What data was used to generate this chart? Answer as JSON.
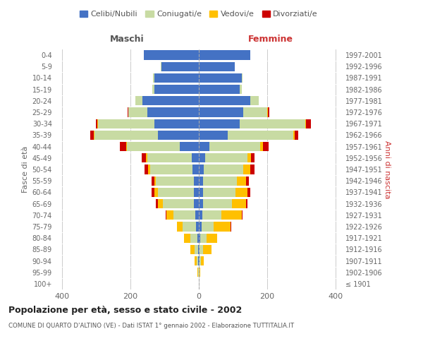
{
  "age_groups": [
    "100+",
    "95-99",
    "90-94",
    "85-89",
    "80-84",
    "75-79",
    "70-74",
    "65-69",
    "60-64",
    "55-59",
    "50-54",
    "45-49",
    "40-44",
    "35-39",
    "30-34",
    "25-29",
    "20-24",
    "15-19",
    "10-14",
    "5-9",
    "0-4"
  ],
  "birth_years": [
    "≤ 1901",
    "1902-1906",
    "1907-1911",
    "1912-1916",
    "1917-1921",
    "1922-1926",
    "1927-1931",
    "1932-1936",
    "1937-1941",
    "1942-1946",
    "1947-1951",
    "1952-1956",
    "1957-1961",
    "1962-1966",
    "1967-1971",
    "1972-1976",
    "1977-1981",
    "1982-1986",
    "1987-1991",
    "1992-1996",
    "1997-2001"
  ],
  "maschi": {
    "celibi": [
      0,
      0,
      2,
      3,
      5,
      8,
      10,
      15,
      15,
      15,
      18,
      20,
      55,
      120,
      130,
      150,
      165,
      130,
      130,
      110,
      160
    ],
    "coniugati": [
      0,
      2,
      5,
      10,
      20,
      40,
      65,
      90,
      105,
      110,
      125,
      130,
      155,
      185,
      165,
      55,
      20,
      5,
      3,
      1,
      1
    ],
    "vedovi": [
      0,
      2,
      5,
      12,
      18,
      15,
      20,
      15,
      10,
      5,
      5,
      5,
      3,
      2,
      1,
      1,
      0,
      0,
      0,
      0,
      0
    ],
    "divorziati": [
      0,
      0,
      0,
      0,
      0,
      0,
      2,
      5,
      8,
      8,
      10,
      12,
      18,
      10,
      5,
      2,
      1,
      0,
      0,
      0,
      0
    ]
  },
  "femmine": {
    "nubili": [
      0,
      0,
      2,
      3,
      5,
      8,
      10,
      12,
      12,
      12,
      15,
      18,
      30,
      85,
      120,
      130,
      150,
      120,
      125,
      105,
      150
    ],
    "coniugate": [
      0,
      2,
      5,
      10,
      18,
      35,
      55,
      85,
      95,
      100,
      115,
      125,
      150,
      190,
      190,
      70,
      25,
      5,
      2,
      1,
      1
    ],
    "vedove": [
      0,
      3,
      8,
      25,
      30,
      50,
      60,
      40,
      35,
      25,
      20,
      10,
      8,
      5,
      2,
      2,
      0,
      0,
      0,
      0,
      0
    ],
    "divorziate": [
      0,
      0,
      0,
      0,
      1,
      1,
      2,
      5,
      8,
      10,
      12,
      10,
      15,
      10,
      15,
      3,
      1,
      0,
      0,
      0,
      0
    ]
  },
  "colors": {
    "celibi": "#4472c4",
    "coniugati": "#c8dba3",
    "vedovi": "#ffc000",
    "divorziati": "#cc0000"
  },
  "xlim": 420,
  "title": "Popolazione per età, sesso e stato civile - 2002",
  "subtitle": "COMUNE DI QUARTO D'ALTINO (VE) - Dati ISTAT 1° gennaio 2002 - Elaborazione TUTTITALIA.IT",
  "ylabel_left": "Fasce di età",
  "ylabel_right": "Anni di nascita",
  "xlabel_left": "Maschi",
  "xlabel_right": "Femmine",
  "legend_labels": [
    "Celibi/Nubili",
    "Coniugati/e",
    "Vedovi/e",
    "Divorziati/e"
  ],
  "background_color": "#ffffff",
  "grid_color": "#cccccc"
}
